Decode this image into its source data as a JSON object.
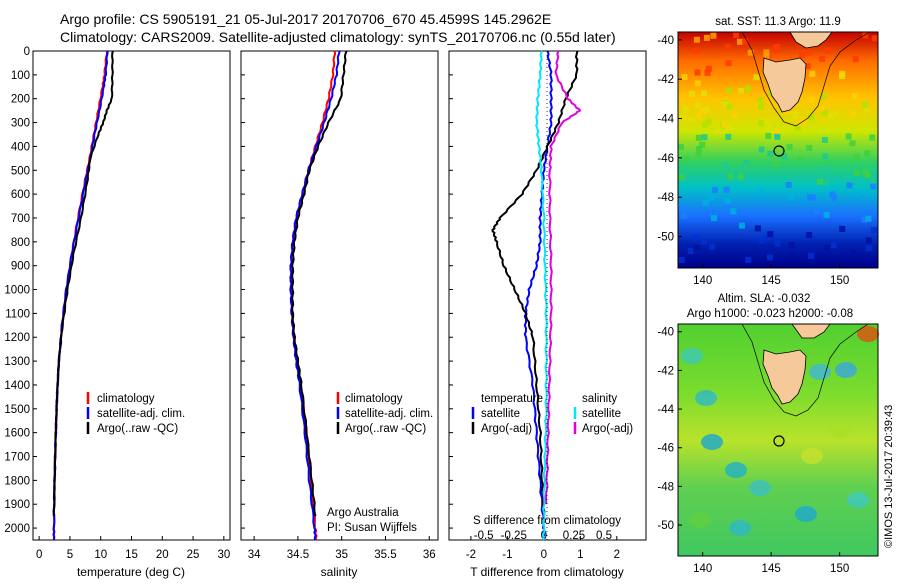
{
  "header": {
    "line1": "Argo profile: CS 5905191_21 05-Jul-2017 20170706_670 45.4599S 145.2962E",
    "line2": "Climatology: CARS2009. Satellite-adjusted climatology: synTS_20170706.nc (0.55d later)"
  },
  "colors": {
    "climatology": "#ff0000",
    "satellite": "#0000ff",
    "argo": "#000000",
    "salinity_sat": "#00e6ff",
    "salinity_argo": "#e000e0",
    "land": "#f5c99a"
  },
  "depth_ticks": [
    0,
    100,
    200,
    300,
    400,
    500,
    600,
    700,
    800,
    900,
    1000,
    1100,
    1200,
    1300,
    1400,
    1500,
    1600,
    1700,
    1800,
    1900,
    2000
  ],
  "panels": {
    "temperature": {
      "xlabel": "temperature (deg C)",
      "xticks": [
        "0",
        "5",
        "10",
        "15",
        "20",
        "25",
        "30"
      ],
      "legend": [
        "climatology",
        "satellite-adj. clim.",
        "Argo(..raw -QC)"
      ]
    },
    "salinity": {
      "xlabel": "salinity",
      "xticks": [
        "34",
        "34.5",
        "35",
        "35.5",
        "36"
      ],
      "legend": [
        "climatology",
        "satellite-adj. clim.",
        "Argo(..raw -QC)"
      ],
      "credit1": "Argo Australia",
      "credit2": "PI: Susan Wijffels"
    },
    "difference": {
      "xlabel_bottom": "T difference from climatology",
      "xlabel_top": "S difference from climatology",
      "xticks_top": [
        "-0.5",
        "-0.25",
        "0",
        "0.25",
        "0.5"
      ],
      "xticks_bottom": [
        "-2",
        "-1",
        "0",
        "1",
        "2"
      ],
      "legend_temp_title": "temperature",
      "legend_temp": [
        "satellite",
        "Argo(-adj)"
      ],
      "legend_sal_title": "salinity",
      "legend_sal": [
        "satellite",
        "Argo(-adj)"
      ]
    },
    "sst_map": {
      "title": "sat. SST: 11.3 Argo: 11.9",
      "yticks": [
        "-40",
        "-42",
        "-44",
        "-46",
        "-48",
        "-50"
      ],
      "xticks": [
        "140",
        "145",
        "150"
      ]
    },
    "sla_map": {
      "title1": "Altim. SLA: -0.032",
      "title2": "Argo h1000: -0.023 h2000: -0.08",
      "yticks": [
        "-40",
        "-42",
        "-44",
        "-46",
        "-48",
        "-50"
      ],
      "xticks": [
        "140",
        "145",
        "150"
      ]
    },
    "stamp": "©IMOS 13-Jul-2017 20:39:43"
  },
  "chart_data": [
    {
      "type": "line",
      "title": "",
      "xlabel": "temperature (deg C)",
      "ylabel": "",
      "xlim": [
        -1,
        31
      ],
      "ylim": [
        2050,
        0
      ],
      "series": [
        {
          "name": "climatology",
          "color": "#ff0000",
          "depth": [
            0,
            100,
            150,
            250,
            350,
            450,
            550,
            700,
            850,
            1000,
            1150,
            1300,
            1450,
            1600,
            1800,
            2000,
            2050
          ],
          "values": [
            11.0,
            10.6,
            10.3,
            9.6,
            8.9,
            8.2,
            7.4,
            6.3,
            5.3,
            4.4,
            3.7,
            3.2,
            2.9,
            2.7,
            2.5,
            2.4,
            2.4
          ]
        },
        {
          "name": "satellite-adj. clim.",
          "color": "#0000ff",
          "depth": [
            0,
            100,
            150,
            250,
            350,
            450,
            550,
            700,
            850,
            1000,
            1150,
            1300,
            1450,
            1600,
            1800,
            2000,
            2050
          ],
          "values": [
            11.1,
            10.8,
            10.5,
            9.8,
            9.0,
            8.3,
            7.5,
            6.4,
            5.3,
            4.4,
            3.7,
            3.2,
            2.9,
            2.7,
            2.5,
            2.4,
            2.4
          ]
        },
        {
          "name": "Argo(..raw -QC)",
          "color": "#000000",
          "depth": [
            0,
            100,
            200,
            250,
            300,
            350,
            450,
            550,
            700,
            850,
            1000,
            1150,
            1300,
            1450,
            1600,
            1800,
            1950
          ],
          "values": [
            11.9,
            11.9,
            11.8,
            11.0,
            10.4,
            9.6,
            8.3,
            7.8,
            6.8,
            5.6,
            4.6,
            3.8,
            3.2,
            2.9,
            2.7,
            2.5,
            2.4
          ]
        }
      ]
    },
    {
      "type": "line",
      "title": "",
      "xlabel": "salinity",
      "ylabel": "",
      "xlim": [
        33.85,
        36.1
      ],
      "ylim": [
        2050,
        0
      ],
      "series": [
        {
          "name": "climatology",
          "color": "#ff0000",
          "depth": [
            0,
            100,
            200,
            300,
            400,
            500,
            600,
            700,
            800,
            900,
            1000,
            1100,
            1200,
            1300,
            1400,
            1600,
            1800,
            2000,
            2050
          ],
          "values": [
            34.92,
            34.9,
            34.85,
            34.78,
            34.7,
            34.62,
            34.55,
            34.48,
            34.44,
            34.42,
            34.42,
            34.43,
            34.45,
            34.49,
            34.53,
            34.6,
            34.65,
            34.7,
            34.71
          ]
        },
        {
          "name": "satellite-adj. clim.",
          "color": "#0000ff",
          "depth": [
            0,
            100,
            200,
            300,
            400,
            500,
            600,
            700,
            800,
            900,
            1000,
            1100,
            1200,
            1300,
            1400,
            1600,
            1800,
            2000,
            2050
          ],
          "values": [
            34.97,
            34.94,
            34.88,
            34.8,
            34.71,
            34.62,
            34.55,
            34.48,
            34.44,
            34.42,
            34.42,
            34.43,
            34.45,
            34.48,
            34.52,
            34.58,
            34.63,
            34.69,
            34.7
          ]
        },
        {
          "name": "Argo(..raw -QC)",
          "color": "#000000",
          "depth": [
            0,
            100,
            200,
            300,
            400,
            500,
            600,
            700,
            800,
            900,
            1000,
            1100,
            1200,
            1300,
            1400,
            1600,
            1800,
            1950
          ],
          "values": [
            35.05,
            35.02,
            34.99,
            34.85,
            34.73,
            34.63,
            34.57,
            34.5,
            34.46,
            34.44,
            34.44,
            34.44,
            34.46,
            34.5,
            34.54,
            34.6,
            34.66,
            34.7
          ]
        }
      ]
    },
    {
      "type": "line",
      "title": "",
      "xlabel": "T difference from climatology",
      "ylabel": "",
      "xlim": [
        -2.6,
        2.8
      ],
      "ylim": [
        2050,
        0
      ],
      "series": [
        {
          "name": "temperature satellite",
          "color": "#0000ff",
          "depth": [
            0,
            100,
            200,
            300,
            400,
            500,
            600,
            700,
            800,
            900,
            1000,
            1100,
            1200,
            1400,
            1600,
            1800,
            2000,
            2050
          ],
          "values": [
            0.1,
            0.2,
            0.2,
            0.2,
            0.1,
            0.0,
            -0.05,
            -0.1,
            -0.1,
            -0.2,
            -0.4,
            -0.5,
            -0.5,
            -0.3,
            -0.2,
            -0.1,
            0.0,
            0.0
          ]
        },
        {
          "name": "temperature Argo(-adj)",
          "color": "#000000",
          "depth": [
            0,
            100,
            200,
            300,
            400,
            500,
            600,
            700,
            750,
            800,
            900,
            1000,
            1100,
            1200,
            1400,
            1600,
            1800,
            1950
          ],
          "values": [
            0.9,
            0.9,
            0.6,
            0.4,
            0.1,
            -0.2,
            -0.6,
            -1.2,
            -1.4,
            -1.3,
            -1.1,
            -0.8,
            -0.5,
            -0.3,
            -0.2,
            -0.1,
            -0.05,
            0.0
          ]
        },
        {
          "name": "salinity satellite",
          "color": "#00e6ff",
          "depth": [
            0,
            100,
            200,
            300,
            400,
            500,
            700,
            900,
            1100,
            1300,
            1500,
            1700,
            1900,
            2050
          ],
          "values": [
            -0.02,
            -0.03,
            -0.05,
            -0.06,
            -0.04,
            -0.02,
            0.0,
            0.01,
            0.02,
            0.02,
            0.02,
            0.01,
            0.0,
            0.0
          ]
        },
        {
          "name": "salinity Argo(-adj)",
          "color": "#e000e0",
          "depth": [
            0,
            100,
            200,
            250,
            300,
            400,
            500,
            700,
            900,
            1100,
            1300,
            1500,
            1700,
            1900
          ],
          "values": [
            0.12,
            0.1,
            0.2,
            0.3,
            0.15,
            0.06,
            0.05,
            0.05,
            0.06,
            0.06,
            0.05,
            0.04,
            0.03,
            0.02
          ]
        }
      ]
    }
  ]
}
